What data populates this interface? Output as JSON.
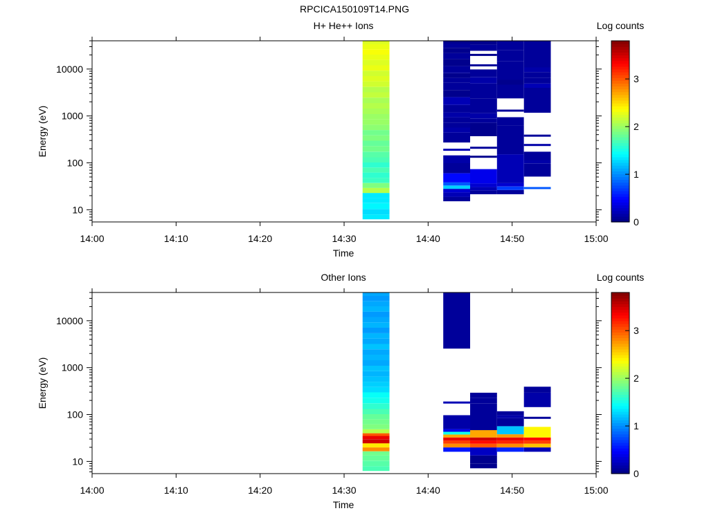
{
  "figure_title": "RPCICA150109T14.PNG",
  "colorbar": {
    "label": "Log counts",
    "ticks": [
      "0",
      "1",
      "2",
      "3"
    ],
    "range": [
      0,
      3.8
    ],
    "colormap": "jet"
  },
  "chart_data": [
    {
      "type": "heatmap",
      "title": "H+ He++ Ions",
      "xlabel": "Time",
      "ylabel": "Energy (eV)",
      "x_ticks": [
        "14:00",
        "14:10",
        "14:20",
        "14:30",
        "14:40",
        "14:50",
        "15:00"
      ],
      "xlim_minutes": [
        0,
        60
      ],
      "yscale": "log",
      "ylim": [
        5.5,
        40000
      ],
      "y_ticks": [
        "10",
        "100",
        "1000",
        "10000"
      ],
      "columns": [
        {
          "t_start": 32.2,
          "t_end": 35.4,
          "bins": [
            {
              "e": 7,
              "v": 1.35
            },
            {
              "e": 9,
              "v": 1.3
            },
            {
              "e": 12,
              "v": 1.4
            },
            {
              "e": 16,
              "v": 1.35
            },
            {
              "e": 20,
              "v": 1.35
            },
            {
              "e": 26,
              "v": 2.1
            },
            {
              "e": 33,
              "v": 1.9
            },
            {
              "e": 42,
              "v": 1.65
            },
            {
              "e": 55,
              "v": 1.6
            },
            {
              "e": 70,
              "v": 1.7
            },
            {
              "e": 90,
              "v": 1.6
            },
            {
              "e": 115,
              "v": 1.7
            },
            {
              "e": 150,
              "v": 1.75
            },
            {
              "e": 200,
              "v": 1.85
            },
            {
              "e": 260,
              "v": 1.8
            },
            {
              "e": 340,
              "v": 1.9
            },
            {
              "e": 440,
              "v": 1.85
            },
            {
              "e": 570,
              "v": 1.95
            },
            {
              "e": 740,
              "v": 2.0
            },
            {
              "e": 960,
              "v": 2.0
            },
            {
              "e": 1250,
              "v": 2.05
            },
            {
              "e": 1650,
              "v": 2.1
            },
            {
              "e": 2150,
              "v": 2.05
            },
            {
              "e": 2800,
              "v": 2.15
            },
            {
              "e": 3650,
              "v": 2.1
            },
            {
              "e": 4750,
              "v": 2.2
            },
            {
              "e": 6200,
              "v": 2.25
            },
            {
              "e": 8100,
              "v": 2.2
            },
            {
              "e": 10500,
              "v": 2.3
            },
            {
              "e": 13700,
              "v": 2.25
            },
            {
              "e": 17800,
              "v": 2.3
            },
            {
              "e": 23200,
              "v": 2.35
            },
            {
              "e": 30000,
              "v": 2.3
            },
            {
              "e": 38000,
              "v": 2.25
            }
          ]
        },
        {
          "t_start": 41.8,
          "t_end": 45.0,
          "bins": [
            {
              "e": 17,
              "v": 0.1
            },
            {
              "e": 21,
              "v": 0.2
            },
            {
              "e": 26,
              "v": 0.3
            },
            {
              "e": 30,
              "v": 1.25
            },
            {
              "e": 36,
              "v": 0.8
            },
            {
              "e": 41,
              "v": 0.5
            },
            {
              "e": 88,
              "v": 0.1
            },
            {
              "e": 110,
              "v": 0.15
            },
            {
              "e": 190,
              "v": 0.2
            },
            {
              "e": 390,
              "v": 0.1
            },
            {
              "e": 500,
              "v": 0.15
            },
            {
              "e": 640,
              "v": 0.1
            },
            {
              "e": 820,
              "v": 0.1
            },
            {
              "e": 1050,
              "v": 0.15
            },
            {
              "e": 1350,
              "v": 0.1
            },
            {
              "e": 2200,
              "v": 0.2
            },
            {
              "e": 2900,
              "v": 0.05
            },
            {
              "e": 4400,
              "v": 0.1
            },
            {
              "e": 6100,
              "v": 0.1
            },
            {
              "e": 7000,
              "v": 0.05
            },
            {
              "e": 9500,
              "v": 0.1
            },
            {
              "e": 14000,
              "v": 0.05
            },
            {
              "e": 19000,
              "v": 0.1
            },
            {
              "e": 25000,
              "v": 0.05
            },
            {
              "e": 32000,
              "v": 0.1
            },
            {
              "e": 38000,
              "v": 0.05
            }
          ]
        },
        {
          "t_start": 45.0,
          "t_end": 48.2,
          "bins": [
            {
              "e": 24,
              "v": 0.1
            },
            {
              "e": 28,
              "v": 0.2
            },
            {
              "e": 33,
              "v": 0.3
            },
            {
              "e": 40,
              "v": 0.4
            },
            {
              "e": 135,
              "v": 0.05
            },
            {
              "e": 210,
              "v": 0.1
            },
            {
              "e": 650,
              "v": 0.05
            },
            {
              "e": 780,
              "v": 0.1
            },
            {
              "e": 1000,
              "v": 0.15
            },
            {
              "e": 1300,
              "v": 0.1
            },
            {
              "e": 4300,
              "v": 0.1
            },
            {
              "e": 5600,
              "v": 0.15
            },
            {
              "e": 8000,
              "v": 0.1
            },
            {
              "e": 12000,
              "v": 0.1
            },
            {
              "e": 20000,
              "v": 0.05
            },
            {
              "e": 30000,
              "v": 0.1
            },
            {
              "e": 37000,
              "v": 0.05
            }
          ]
        },
        {
          "t_start": 48.2,
          "t_end": 51.4,
          "bins": [
            {
              "e": 24,
              "v": 0.1
            },
            {
              "e": 29,
              "v": 0.7
            },
            {
              "e": 34,
              "v": 0.3
            },
            {
              "e": 40,
              "v": 0.2
            },
            {
              "e": 580,
              "v": 0.1
            },
            {
              "e": 680,
              "v": 0.1
            },
            {
              "e": 1300,
              "v": 0.1
            },
            {
              "e": 4300,
              "v": 0.1
            },
            {
              "e": 5000,
              "v": 0.05
            },
            {
              "e": 6900,
              "v": 0.1
            },
            {
              "e": 13000,
              "v": 0.1
            },
            {
              "e": 17000,
              "v": 0.1
            },
            {
              "e": 37000,
              "v": 0.1
            }
          ]
        },
        {
          "t_start": 51.4,
          "t_end": 54.6,
          "bins": [
            {
              "e": 29,
              "v": 0.8
            },
            {
              "e": 90,
              "v": 0.1
            },
            {
              "e": 105,
              "v": 0.15
            },
            {
              "e": 125,
              "v": 0.1
            },
            {
              "e": 240,
              "v": 0.15
            },
            {
              "e": 380,
              "v": 0.1
            },
            {
              "e": 3600,
              "v": 0.1
            },
            {
              "e": 4400,
              "v": 0.2
            },
            {
              "e": 5500,
              "v": 0.1
            },
            {
              "e": 7600,
              "v": 0.1
            },
            {
              "e": 9800,
              "v": 0.15
            },
            {
              "e": 12000,
              "v": 0.1
            },
            {
              "e": 38000,
              "v": 0.1
            }
          ]
        }
      ]
    },
    {
      "type": "heatmap",
      "title": "Other Ions",
      "xlabel": "Time",
      "ylabel": "Energy (eV)",
      "x_ticks": [
        "14:00",
        "14:10",
        "14:20",
        "14:30",
        "14:40",
        "14:50",
        "15:00"
      ],
      "xlim_minutes": [
        0,
        60
      ],
      "yscale": "log",
      "ylim": [
        5.5,
        40000
      ],
      "y_ticks": [
        "10",
        "100",
        "1000",
        "10000"
      ],
      "columns": [
        {
          "t_start": 32.2,
          "t_end": 35.4,
          "bins": [
            {
              "e": 7,
              "v": 1.7
            },
            {
              "e": 9,
              "v": 1.75
            },
            {
              "e": 12,
              "v": 1.8
            },
            {
              "e": 15,
              "v": 1.85
            },
            {
              "e": 18,
              "v": 2.8
            },
            {
              "e": 22,
              "v": 2.45
            },
            {
              "e": 27,
              "v": 3.5
            },
            {
              "e": 33,
              "v": 3.4
            },
            {
              "e": 37,
              "v": 3.0
            },
            {
              "e": 43,
              "v": 2.1
            },
            {
              "e": 55,
              "v": 1.9
            },
            {
              "e": 70,
              "v": 1.85
            },
            {
              "e": 90,
              "v": 1.8
            },
            {
              "e": 115,
              "v": 1.7
            },
            {
              "e": 150,
              "v": 1.6
            },
            {
              "e": 200,
              "v": 1.5
            },
            {
              "e": 260,
              "v": 1.45
            },
            {
              "e": 340,
              "v": 1.3
            },
            {
              "e": 440,
              "v": 1.25
            },
            {
              "e": 570,
              "v": 1.2
            },
            {
              "e": 740,
              "v": 1.15
            },
            {
              "e": 960,
              "v": 1.2
            },
            {
              "e": 1250,
              "v": 1.1
            },
            {
              "e": 1650,
              "v": 1.15
            },
            {
              "e": 2150,
              "v": 1.1
            },
            {
              "e": 2800,
              "v": 1.2
            },
            {
              "e": 3650,
              "v": 1.1
            },
            {
              "e": 4750,
              "v": 1.15
            },
            {
              "e": 6200,
              "v": 1.05
            },
            {
              "e": 8100,
              "v": 1.15
            },
            {
              "e": 10500,
              "v": 1.1
            },
            {
              "e": 13700,
              "v": 1.05
            },
            {
              "e": 17800,
              "v": 1.15
            },
            {
              "e": 23200,
              "v": 1.1
            },
            {
              "e": 30000,
              "v": 1.05
            },
            {
              "e": 38000,
              "v": 1.1
            }
          ]
        },
        {
          "t_start": 41.8,
          "t_end": 45.0,
          "bins": [
            {
              "e": 18,
              "v": 0.55
            },
            {
              "e": 22,
              "v": 2.8
            },
            {
              "e": 26,
              "v": 3.1
            },
            {
              "e": 30,
              "v": 3.4
            },
            {
              "e": 35,
              "v": 2.7
            },
            {
              "e": 40,
              "v": 1.5
            },
            {
              "e": 46,
              "v": 0.4
            },
            {
              "e": 52,
              "v": 0.15
            },
            {
              "e": 180,
              "v": 0.2
            },
            {
              "e": 36000,
              "v": 0.1
            }
          ]
        },
        {
          "t_start": 45.0,
          "t_end": 48.2,
          "bins": [
            {
              "e": 8,
              "v": 0.05
            },
            {
              "e": 10,
              "v": 0.05
            },
            {
              "e": 18,
              "v": 0.25
            },
            {
              "e": 22,
              "v": 3.0
            },
            {
              "e": 26,
              "v": 3.3
            },
            {
              "e": 30,
              "v": 3.5
            },
            {
              "e": 35,
              "v": 2.7
            },
            {
              "e": 62,
              "v": 0.1
            },
            {
              "e": 85,
              "v": 0.1
            },
            {
              "e": 145,
              "v": 0.1
            },
            {
              "e": 200,
              "v": 0.1
            },
            {
              "e": 260,
              "v": 0.1
            }
          ]
        },
        {
          "t_start": 48.2,
          "t_end": 51.4,
          "bins": [
            {
              "e": 18,
              "v": 0.6
            },
            {
              "e": 22,
              "v": 2.8
            },
            {
              "e": 26,
              "v": 3.2
            },
            {
              "e": 30,
              "v": 3.4
            },
            {
              "e": 35,
              "v": 2.75
            },
            {
              "e": 41,
              "v": 1.2
            },
            {
              "e": 78,
              "v": 0.1
            },
            {
              "e": 90,
              "v": 0.15
            },
            {
              "e": 105,
              "v": 0.1
            }
          ]
        },
        {
          "t_start": 51.4,
          "t_end": 54.6,
          "bins": [
            {
              "e": 18,
              "v": 0.2
            },
            {
              "e": 22,
              "v": 2.6
            },
            {
              "e": 26,
              "v": 3.1
            },
            {
              "e": 30,
              "v": 3.3
            },
            {
              "e": 35,
              "v": 2.4
            },
            {
              "e": 85,
              "v": 0.1
            },
            {
              "e": 245,
              "v": 0.15
            },
            {
              "e": 350,
              "v": 0.1
            }
          ]
        }
      ]
    }
  ]
}
